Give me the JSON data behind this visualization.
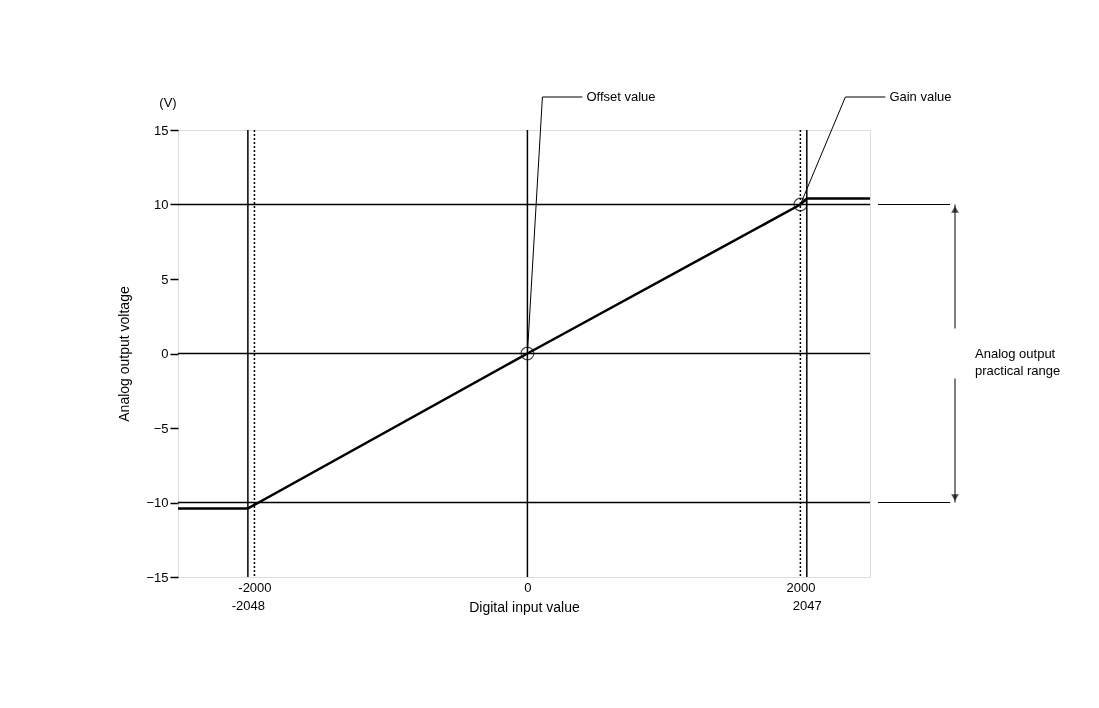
{
  "chart_data": {
    "type": "line",
    "xlabel": "Digital input value",
    "ylabel": "Analog output voltage",
    "x": [
      -2560,
      -2048,
      0,
      2000,
      2047,
      2510
    ],
    "series": [
      {
        "color": "#000000",
        "values": [
          -10.4,
          -10.4,
          0,
          10,
          10.4,
          10.4
        ]
      }
    ],
    "xlim": [
      -2560,
      2510
    ],
    "xticks": [
      -2000,
      0,
      2000
    ],
    "x2lim": [
      -2560,
      2510
    ],
    "x2ticks": [
      -2048,
      2047
    ],
    "ylim": [
      -15,
      15
    ],
    "yticks": [
      -15,
      -10,
      -5,
      0,
      5,
      10,
      15
    ],
    "ref_lines": [
      {
        "axis": "y",
        "value": 10,
        "color": "#000000",
        "line_style": "solid"
      },
      {
        "axis": "y",
        "value": 0,
        "color": "#000000",
        "line_style": "solid"
      },
      {
        "axis": "y",
        "value": -10,
        "color": "#000000",
        "line_style": "solid"
      },
      {
        "axis": "x",
        "value": -2048,
        "color": "#000000",
        "line_style": "solid"
      },
      {
        "axis": "x",
        "value": -2000,
        "color": "#000000",
        "line_style": "dotted"
      },
      {
        "axis": "x",
        "value": 0,
        "color": "#000000",
        "line_style": "solid"
      },
      {
        "axis": "x",
        "value": 2000,
        "color": "#000000",
        "line_style": "dotted"
      },
      {
        "axis": "x",
        "value": 2047,
        "color": "#000000",
        "line_style": "solid"
      }
    ],
    "annotations": [
      "(V)",
      {
        "text": "Offset value",
        "x": 0,
        "y": 0
      },
      {
        "text": "Gain value",
        "x": 2000,
        "y": 10
      },
      "Analog output practical range"
    ],
    "grid": false,
    "marker": "none",
    "line_style": "solid"
  }
}
